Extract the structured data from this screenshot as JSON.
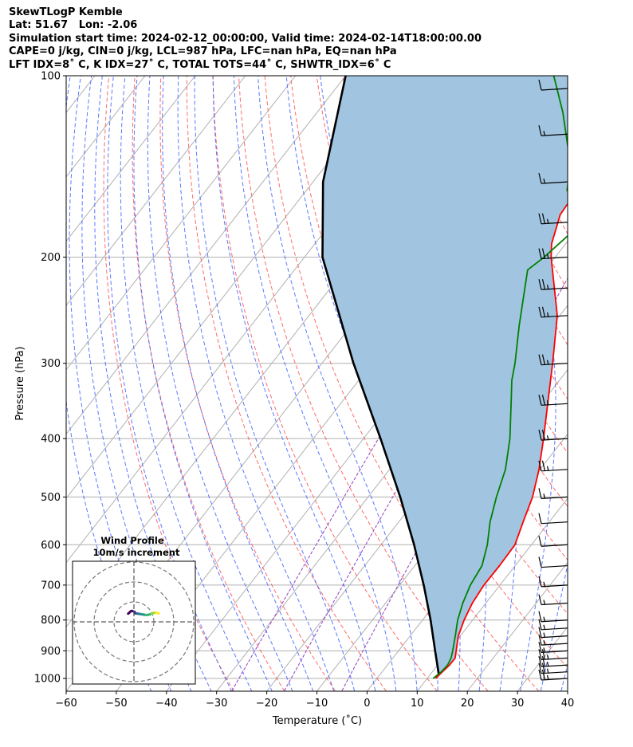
{
  "header": {
    "line1": "SkewTLogP Kemble",
    "line2": "Lat: 51.67   Lon: -2.06",
    "line3": "Simulation start time: 2024-02-12_00:00:00, Valid time: 2024-02-14T18:00:00.00",
    "line4": "CAPE=0 j/kg, CIN=0 j/kg, LCL=987 hPa, LFC=nan hPa, EQ=nan hPa",
    "line5": "LFT IDX=8˚ C, K IDX=27˚ C, TOTAL TOTS=44˚ C, SHWTR_IDX=6˚ C"
  },
  "colors": {
    "temperature": "#ff0000",
    "dewpoint": "#008000",
    "parcel": "#000000",
    "shade": "#a1c5e0",
    "dry_adiabat": "#ff5050",
    "moist_adiabat": "#4060ff",
    "mixing_ratio": "#9040c0",
    "isotherm": "#b0b0b0"
  },
  "chart_data": {
    "type": "skew-t log-p",
    "xlabel": "Temperature (˚C)",
    "ylabel": "Pressure (hPa)",
    "xlim": [
      -60,
      40
    ],
    "ylim": [
      1050,
      100
    ],
    "yscale": "log",
    "x_ticks": [
      "−60",
      "−50",
      "−40",
      "−30",
      "−20",
      "−10",
      "0",
      "10",
      "20",
      "30",
      "40"
    ],
    "y_ticks": [
      "1000",
      "900",
      "800",
      "700",
      "600",
      "500",
      "400",
      "300",
      "200",
      "100"
    ],
    "grid": true,
    "series": [
      {
        "key": "temperature",
        "points": [
          [
            1000,
            11.7
          ],
          [
            975,
            12.0
          ],
          [
            950,
            12.4
          ],
          [
            925,
            12.4
          ],
          [
            900,
            11.5
          ],
          [
            850,
            9.6
          ],
          [
            800,
            8.3
          ],
          [
            750,
            7.3
          ],
          [
            700,
            6.8
          ],
          [
            650,
            6.9
          ],
          [
            600,
            6.7
          ],
          [
            550,
            4.8
          ],
          [
            500,
            2.8
          ],
          [
            450,
            -0.2
          ],
          [
            400,
            -4.1
          ],
          [
            350,
            -8.7
          ],
          [
            300,
            -14.0
          ],
          [
            250,
            -20.5
          ],
          [
            200,
            -30.8
          ],
          [
            190,
            -32.8
          ],
          [
            170,
            -35.6
          ],
          [
            150,
            -36.2
          ],
          [
            130,
            -37.0
          ],
          [
            115,
            -37.8
          ],
          [
            100,
            -38.0
          ]
        ]
      },
      {
        "key": "dewpoint",
        "points": [
          [
            1000,
            11.2
          ],
          [
            975,
            11.8
          ],
          [
            950,
            12.0
          ],
          [
            925,
            11.6
          ],
          [
            900,
            10.8
          ],
          [
            850,
            9.0
          ],
          [
            800,
            7.0
          ],
          [
            750,
            5.4
          ],
          [
            700,
            4.1
          ],
          [
            650,
            3.4
          ],
          [
            600,
            1.2
          ],
          [
            550,
            -1.8
          ],
          [
            500,
            -4.4
          ],
          [
            450,
            -6.9
          ],
          [
            400,
            -10.8
          ],
          [
            350,
            -16.0
          ],
          [
            320,
            -19.5
          ],
          [
            300,
            -21.5
          ],
          [
            260,
            -26.5
          ],
          [
            210,
            -33.5
          ],
          [
            200,
            -32.2
          ],
          [
            180,
            -30.4
          ],
          [
            165,
            -32.5
          ],
          [
            155,
            -38.0
          ],
          [
            140,
            -41.5
          ],
          [
            115,
            -51.0
          ],
          [
            100,
            -58.5
          ]
        ]
      },
      {
        "key": "parcel",
        "points": [
          [
            987,
            11.8
          ],
          [
            900,
            7.3
          ],
          [
            800,
            1.6
          ],
          [
            700,
            -5.2
          ],
          [
            600,
            -13.4
          ],
          [
            500,
            -23.6
          ],
          [
            400,
            -36.6
          ],
          [
            300,
            -53.7
          ],
          [
            200,
            -76.4
          ],
          [
            150,
            -88.0
          ],
          [
            100,
            -100.0
          ]
        ]
      }
    ],
    "wind_barbs": [
      {
        "p": 1000,
        "n": 3
      },
      {
        "p": 975,
        "n": 3
      },
      {
        "p": 950,
        "n": 3
      },
      {
        "p": 925,
        "n": 3
      },
      {
        "p": 900,
        "n": 2
      },
      {
        "p": 875,
        "n": 2
      },
      {
        "p": 850,
        "n": 2
      },
      {
        "p": 825,
        "n": 2
      },
      {
        "p": 800,
        "n": 2
      },
      {
        "p": 750,
        "n": 2
      },
      {
        "p": 700,
        "n": 2
      },
      {
        "p": 650,
        "n": 1
      },
      {
        "p": 600,
        "n": 1
      },
      {
        "p": 550,
        "n": 1
      },
      {
        "p": 500,
        "n": 2
      },
      {
        "p": 450,
        "n": 3
      },
      {
        "p": 400,
        "n": 3
      },
      {
        "p": 350,
        "n": 3
      },
      {
        "p": 300,
        "n": 3
      },
      {
        "p": 250,
        "n": 3
      },
      {
        "p": 225,
        "n": 3
      },
      {
        "p": 200,
        "n": 3
      },
      {
        "p": 175,
        "n": 3
      },
      {
        "p": 150,
        "n": 2
      },
      {
        "p": 125,
        "n": 2
      },
      {
        "p": 105,
        "n": 1
      }
    ],
    "hodograph": {
      "title": "Wind Profile",
      "subtitle": "10m/s increment",
      "rings_ms": [
        10,
        20,
        30
      ],
      "points": [
        [
          12.5,
          4.2
        ],
        [
          11,
          4.6
        ],
        [
          10,
          4.5
        ],
        [
          9,
          4.2
        ],
        [
          8,
          3.7
        ],
        [
          6.5,
          3.4
        ],
        [
          5,
          3.6
        ],
        [
          3,
          3.9
        ],
        [
          2,
          4.1
        ],
        [
          1,
          4.2
        ],
        [
          0.5,
          4.3
        ],
        [
          0.4,
          5.0
        ],
        [
          -1,
          5.5
        ],
        [
          -1.6,
          5.3
        ],
        [
          -2.3,
          4.6
        ],
        [
          -2.9,
          4.1
        ]
      ]
    }
  }
}
